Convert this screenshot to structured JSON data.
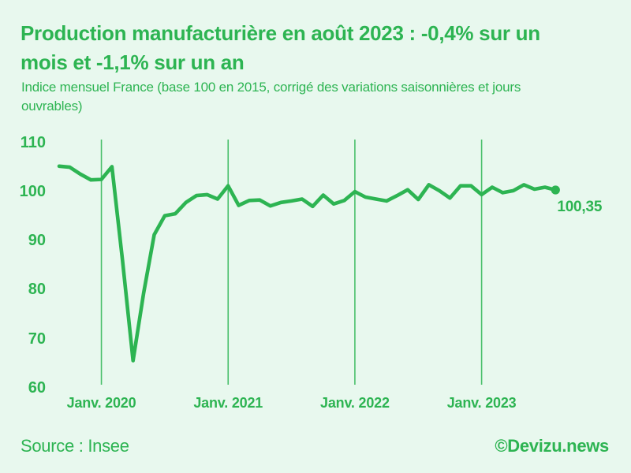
{
  "header": {
    "title": "Production manufacturière en août 2023 : -0,4% sur un mois et -1,1% sur un an",
    "title_lines": [
      "Production manufacturière en août 2023 : -0,4% sur un",
      "mois et -1,1% sur un an"
    ],
    "subtitle": "Indice mensuel France (base 100 en 2015, corrigé des variations saisonnières et jours ouvrables)",
    "subtitle_lines": [
      "Indice mensuel France (base 100 en 2015, corrigé des variations saisonnières et jours",
      "ouvrables)"
    ]
  },
  "footer": {
    "source": "Source : Insee",
    "credit": "©Devizu.news"
  },
  "colors": {
    "background": "#e8f8ee",
    "green": "#2db452",
    "gridline": "#49bf6b"
  },
  "chart_data": {
    "type": "line",
    "title": "Production manufacturière en août 2023 : -0,4% sur un mois et -1,1% sur un an",
    "ylabel": "Indice mensuel France (base 100 en 2015)",
    "x": [
      "2019-09",
      "2019-10",
      "2019-11",
      "2019-12",
      "2020-01",
      "2020-02",
      "2020-03",
      "2020-04",
      "2020-05",
      "2020-06",
      "2020-07",
      "2020-08",
      "2020-09",
      "2020-10",
      "2020-11",
      "2020-12",
      "2021-01",
      "2021-02",
      "2021-03",
      "2021-04",
      "2021-05",
      "2021-06",
      "2021-07",
      "2021-08",
      "2021-09",
      "2021-10",
      "2021-11",
      "2021-12",
      "2022-01",
      "2022-02",
      "2022-03",
      "2022-04",
      "2022-05",
      "2022-06",
      "2022-07",
      "2022-08",
      "2022-09",
      "2022-10",
      "2022-11",
      "2022-12",
      "2023-01",
      "2023-02",
      "2023-03",
      "2023-04",
      "2023-05",
      "2023-06",
      "2023-07",
      "2023-08"
    ],
    "values": [
      105.2,
      105.0,
      103.6,
      102.4,
      102.5,
      105.1,
      86.0,
      65.5,
      79.3,
      91.2,
      95.1,
      95.5,
      97.8,
      99.2,
      99.4,
      98.5,
      101.2,
      97.2,
      98.2,
      98.3,
      97.1,
      97.8,
      98.1,
      98.5,
      97.0,
      99.3,
      97.5,
      98.2,
      100.0,
      98.9,
      98.5,
      98.1,
      99.2,
      100.4,
      98.4,
      101.4,
      100.2,
      98.7,
      101.2,
      101.2,
      99.4,
      100.9,
      99.8,
      100.2,
      101.4,
      100.5,
      100.9,
      100.35
    ],
    "yticks": [
      110,
      100,
      90,
      80,
      70,
      60
    ],
    "ylim": [
      60,
      110
    ],
    "xticks": [
      {
        "index": 4,
        "label": "Janv. 2020"
      },
      {
        "index": 16,
        "label": "Janv. 2021"
      },
      {
        "index": 28,
        "label": "Janv. 2022"
      },
      {
        "index": 40,
        "label": "Janv. 2023"
      }
    ],
    "grid": "vertical-only",
    "legend": "none",
    "last_point": {
      "x": "2023-08",
      "value": 100.35
    },
    "end_label": "100,35"
  }
}
